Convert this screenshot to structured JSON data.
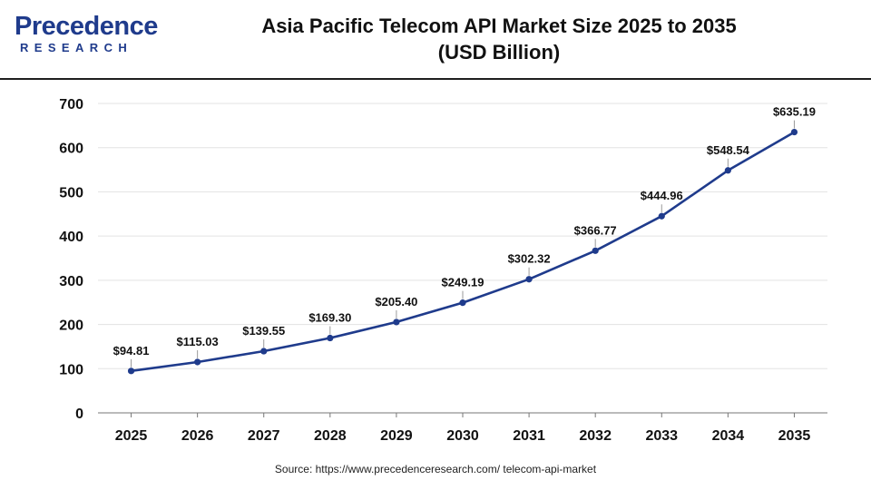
{
  "logo": {
    "word": "Precedence",
    "sub": "RESEARCH"
  },
  "chart_data": {
    "type": "line",
    "title_line1": "Asia Pacific Telecom API Market Size 2025 to 2035",
    "title_line2": "(USD Billion)",
    "categories": [
      "2025",
      "2026",
      "2027",
      "2028",
      "2029",
      "2030",
      "2031",
      "2032",
      "2033",
      "2034",
      "2035"
    ],
    "values": [
      94.81,
      115.03,
      139.55,
      169.3,
      205.4,
      249.19,
      302.32,
      366.77,
      444.96,
      548.54,
      635.19
    ],
    "data_labels": [
      "$94.81",
      "$115.03",
      "$139.55",
      "$169.30",
      "$205.40",
      "$249.19",
      "$302.32",
      "$366.77",
      "$444.96",
      "$548.54",
      "$635.19"
    ],
    "y_ticks": [
      0,
      100,
      200,
      300,
      400,
      500,
      600,
      700
    ],
    "ylim": [
      0,
      700
    ],
    "grid": true,
    "line_color": "#1f3b8c"
  },
  "source": "Source: https://www.precedenceresearch.com/ telecom-api-market"
}
